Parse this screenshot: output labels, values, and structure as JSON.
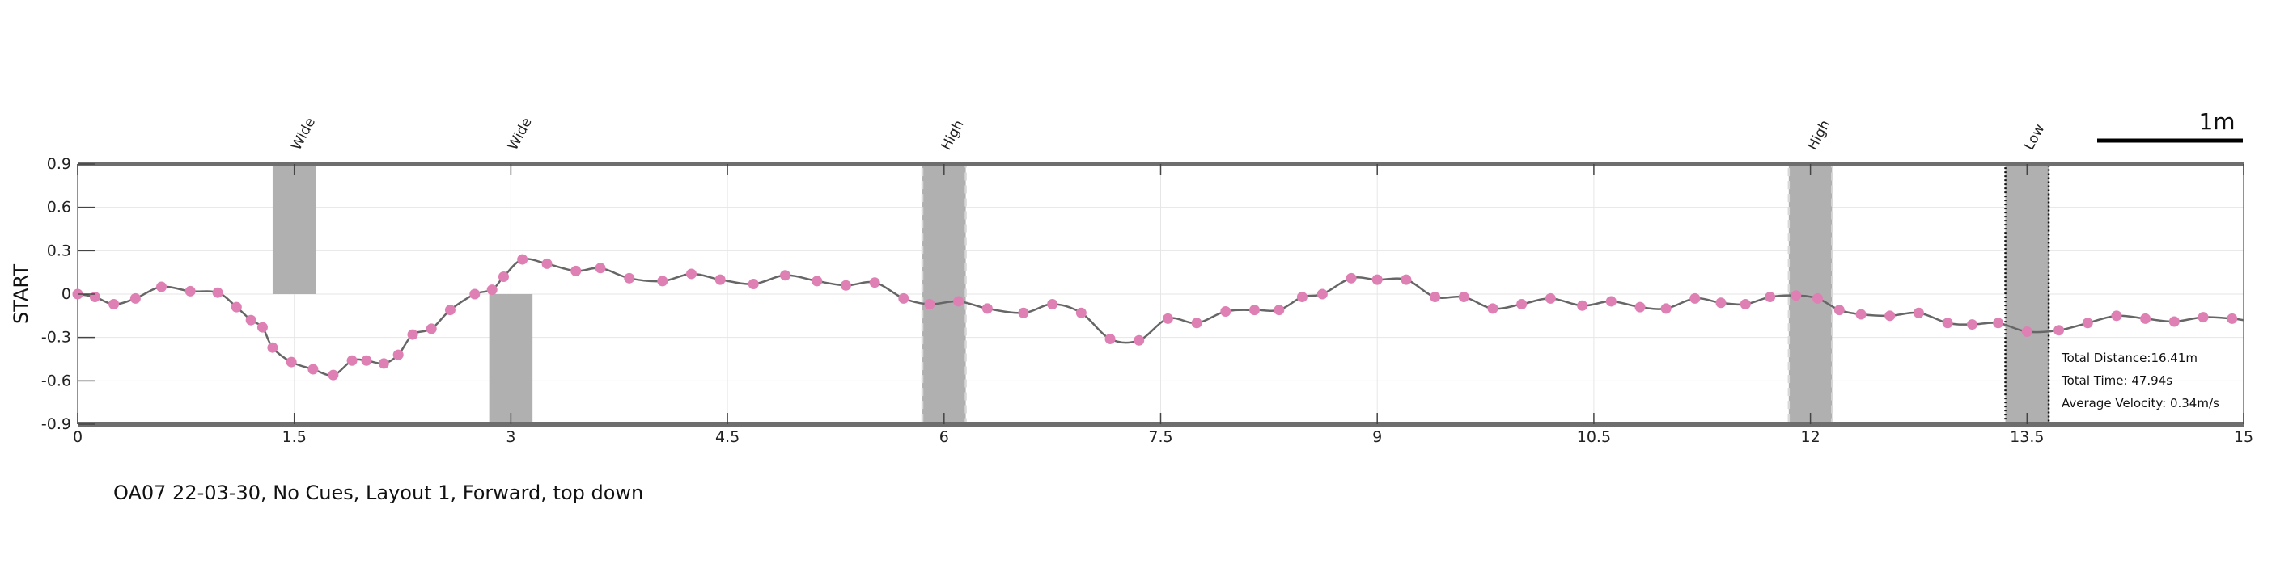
{
  "chart_data": {
    "type": "line",
    "xlim": [
      0,
      15
    ],
    "ylim": [
      -0.9,
      0.9
    ],
    "x_ticks": [
      "0",
      "1.5",
      "3",
      "4.5",
      "6",
      "7.5",
      "9",
      "10.5",
      "12",
      "13.5",
      "15"
    ],
    "y_ticks": [
      "0.9",
      "0.6",
      "0.3",
      "0",
      "-0.3",
      "-0.6",
      "-0.9"
    ],
    "ylabel": "START",
    "grid": true,
    "line_color": "#666666",
    "point_color": "#df80b4",
    "obstacle_color": "#b0b0b0",
    "scale_bar": {
      "label": "1m"
    },
    "obstacles": [
      {
        "label": "Wide",
        "x_start": 1.35,
        "x_end": 1.65,
        "y_start": 0.0,
        "y_end": 0.9,
        "style": "solid"
      },
      {
        "label": "Wide",
        "x_start": 2.85,
        "x_end": 3.15,
        "y_start": -0.9,
        "y_end": 0.0,
        "style": "solid"
      },
      {
        "label": "High",
        "x_start": 5.85,
        "x_end": 6.15,
        "y_start": -0.9,
        "y_end": 0.9,
        "style": "dashed"
      },
      {
        "label": "High",
        "x_start": 11.85,
        "x_end": 12.15,
        "y_start": -0.9,
        "y_end": 0.9,
        "style": "dashed"
      },
      {
        "label": "Low",
        "x_start": 13.35,
        "x_end": 13.65,
        "y_start": -0.9,
        "y_end": 0.9,
        "style": "dotted-dark"
      }
    ],
    "series": [
      {
        "x": [
          0,
          0.12,
          0.25,
          0.4,
          0.58,
          0.78,
          0.97,
          1.1,
          1.2,
          1.28,
          1.35,
          1.48,
          1.63,
          1.77,
          1.9,
          2.0,
          2.12,
          2.22,
          2.32,
          2.45,
          2.58,
          2.75,
          2.87,
          2.95,
          3.08,
          3.25,
          3.45,
          3.62,
          3.82,
          4.05,
          4.25,
          4.45,
          4.68,
          4.9,
          5.12,
          5.32,
          5.52,
          5.72,
          5.9,
          6.1,
          6.3,
          6.55,
          6.75,
          6.95,
          7.15,
          7.35,
          7.55,
          7.75,
          7.95,
          8.15,
          8.32,
          8.48,
          8.62,
          8.82,
          9.0,
          9.2,
          9.4,
          9.6,
          9.8,
          10.0,
          10.2,
          10.42,
          10.62,
          10.82,
          11.0,
          11.2,
          11.38,
          11.55,
          11.72,
          11.9,
          12.05,
          12.2,
          12.35,
          12.55,
          12.75,
          12.95,
          13.12,
          13.3,
          13.5,
          13.72,
          13.92,
          14.12,
          14.32,
          14.52,
          14.72,
          14.92,
          15.0
        ],
        "y": [
          0.0,
          -0.02,
          -0.07,
          -0.03,
          0.05,
          0.02,
          0.01,
          -0.09,
          -0.18,
          -0.23,
          -0.37,
          -0.47,
          -0.52,
          -0.56,
          -0.46,
          -0.46,
          -0.48,
          -0.42,
          -0.28,
          -0.24,
          -0.11,
          0.0,
          0.03,
          0.12,
          0.24,
          0.21,
          0.16,
          0.18,
          0.11,
          0.09,
          0.14,
          0.1,
          0.07,
          0.13,
          0.09,
          0.06,
          0.08,
          -0.03,
          -0.07,
          -0.05,
          -0.1,
          -0.13,
          -0.07,
          -0.13,
          -0.31,
          -0.32,
          -0.17,
          -0.2,
          -0.12,
          -0.11,
          -0.11,
          -0.02,
          0.0,
          0.11,
          0.1,
          0.1,
          -0.02,
          -0.02,
          -0.1,
          -0.07,
          -0.03,
          -0.08,
          -0.05,
          -0.09,
          -0.1,
          -0.03,
          -0.06,
          -0.07,
          -0.02,
          -0.01,
          -0.03,
          -0.11,
          -0.14,
          -0.15,
          -0.13,
          -0.2,
          -0.21,
          -0.2,
          -0.26,
          -0.25,
          -0.2,
          -0.15,
          -0.17,
          -0.19,
          -0.16,
          -0.17,
          -0.18
        ]
      }
    ]
  },
  "stats": {
    "total_distance": "Total Distance:16.41m",
    "total_time": "Total Time: 47.94s",
    "average_velocity": "Average Velocity: 0.34m/s"
  },
  "caption": "OA07 22-03-30, No Cues, Layout 1, Forward, top down"
}
